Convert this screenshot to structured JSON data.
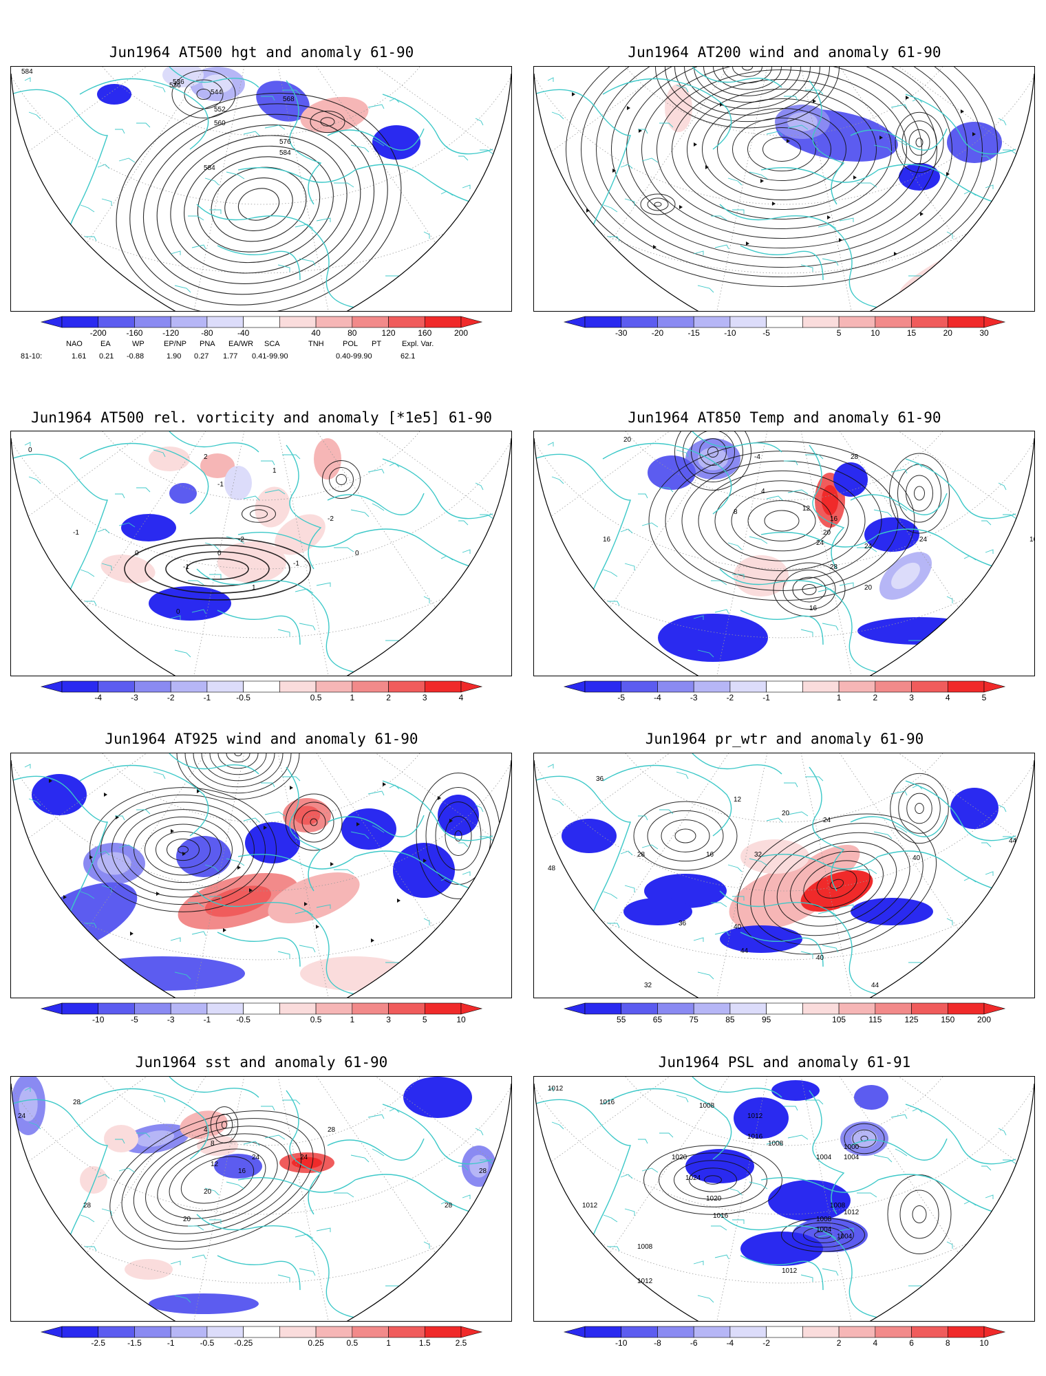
{
  "panels": [
    {
      "title": "Jun1964 AT500 hgt and anomaly 61-90",
      "colorbar": [
        "-200",
        "-160",
        "-120",
        "-80",
        "-40",
        "40",
        "80",
        "120",
        "160",
        "200"
      ],
      "contour_labels": [
        "584",
        "536",
        "544",
        "552",
        "560",
        "568",
        "576",
        "584",
        "584",
        "536"
      ]
    },
    {
      "title": "Jun1964 AT200 wind and anomaly 61-90",
      "colorbar": [
        "-30",
        "-20",
        "-15",
        "-10",
        "-5",
        "5",
        "10",
        "15",
        "20",
        "30"
      ],
      "contour_labels": []
    },
    {
      "title": "Jun1964 AT500 rel. vorticity and anomaly [*1e5] 61-90",
      "colorbar": [
        "-4",
        "-3",
        "-2",
        "-1",
        "-0.5",
        "0.5",
        "1",
        "2",
        "3",
        "4"
      ],
      "contour_labels": [
        "0",
        "0",
        "-1",
        "-1",
        "1",
        "0",
        "-2",
        "-1",
        "1",
        "0",
        "0",
        "-1",
        "2",
        "-2"
      ]
    },
    {
      "title": "Jun1964 AT850 Temp and anomaly 61-90",
      "colorbar": [
        "-5",
        "-4",
        "-3",
        "-2",
        "-1",
        "1",
        "2",
        "3",
        "4",
        "5"
      ],
      "contour_labels": [
        "20",
        "-4",
        "28",
        "4",
        "8",
        "12",
        "16",
        "16",
        "20",
        "24",
        "28",
        "24",
        "16",
        "20",
        "16",
        "24"
      ]
    },
    {
      "title": "Jun1964 AT925 wind and anomaly 61-90",
      "colorbar": [
        "-10",
        "-5",
        "-3",
        "-1",
        "-0.5",
        "0.5",
        "1",
        "3",
        "5",
        "10"
      ],
      "contour_labels": []
    },
    {
      "title": "Jun1964 pr_wtr and anomaly 61-90",
      "colorbar": [
        "55",
        "65",
        "75",
        "85",
        "95",
        "105",
        "115",
        "125",
        "150",
        "200"
      ],
      "contour_labels": [
        "36",
        "12",
        "20",
        "24",
        "16",
        "28",
        "32",
        "40",
        "44",
        "48",
        "36",
        "40",
        "44",
        "40",
        "32",
        "44"
      ]
    },
    {
      "title": "Jun1964 sst and anomaly 61-90",
      "colorbar": [
        "-2.5",
        "-1.5",
        "-1",
        "-0.5",
        "-0.25",
        "0.25",
        "0.5",
        "1",
        "1.5",
        "2.5"
      ],
      "contour_labels": [
        "24",
        "28",
        "28",
        "4",
        "8",
        "12",
        "16",
        "20",
        "24",
        "28",
        "28",
        "20",
        "24",
        "28"
      ]
    },
    {
      "title": "Jun1964 PSL and anomaly 61-91",
      "colorbar": [
        "-10",
        "-8",
        "-6",
        "-4",
        "-2",
        "2",
        "4",
        "6",
        "8",
        "10"
      ],
      "contour_labels": [
        "1012",
        "1016",
        "1008",
        "1012",
        "1016",
        "1020",
        "1024",
        "1020",
        "1016",
        "1012",
        "1004",
        "1008",
        "1000",
        "1004",
        "1008",
        "1012",
        "1008",
        "1004",
        "1004",
        "1008",
        "1012",
        "1012"
      ]
    }
  ],
  "indices": {
    "row_label": "81-10:",
    "headers": [
      "NAO",
      "EA",
      "WP",
      "EP/NP",
      "PNA",
      "EA/WR",
      "SCA",
      "TNH",
      "POL",
      "PT",
      "Expl. Var."
    ],
    "values": [
      "1.61",
      "0.21",
      "-0.88",
      "1.90",
      "0.27",
      "1.77",
      "0.41-99.90",
      "",
      "0.40-99.90",
      "",
      "62.1"
    ]
  },
  "colors": {
    "coast": "#3cc8c8",
    "neg": [
      "#2a2af0",
      "#5c5cf0",
      "#8a8af2",
      "#b6b6f6",
      "#dcdcfa"
    ],
    "pos": [
      "#fadcdc",
      "#f6b6b6",
      "#f28a8a",
      "#f05c5c",
      "#f02a2a"
    ]
  }
}
